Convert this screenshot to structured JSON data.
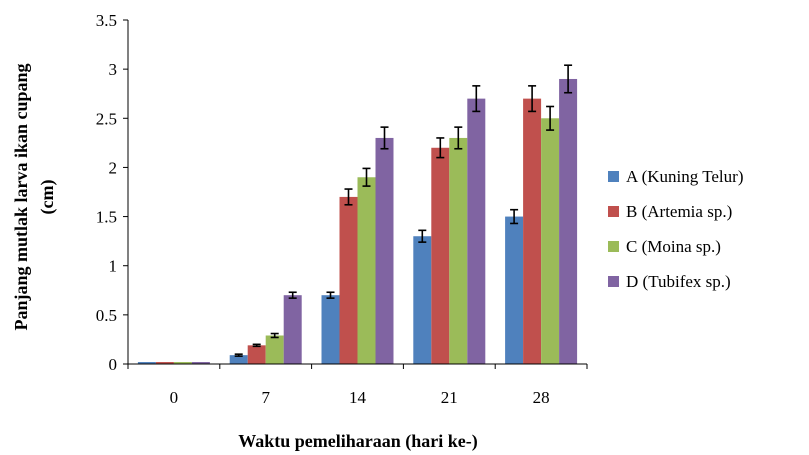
{
  "chart_data": {
    "type": "bar",
    "title": "",
    "xlabel": "Waktu pemeliharaan (hari ke-)",
    "ylabel_lines": [
      "Panjang mutlak larva ikan cupang",
      "(cm)"
    ],
    "categories": [
      "0",
      "7",
      "14",
      "21",
      "28"
    ],
    "ylim": [
      0,
      3.5
    ],
    "yticks": [
      "0",
      "0.5",
      "1",
      "1.5",
      "2",
      "2.5",
      "3",
      "3.5"
    ],
    "grid": false,
    "legend_position": "right",
    "series": [
      {
        "name": "A (Kuning Telur)",
        "color": "#4F81BD",
        "values": [
          0.02,
          0.09,
          0.7,
          1.3,
          1.5
        ],
        "errors": [
          0,
          0.01,
          0.03,
          0.06,
          0.07
        ]
      },
      {
        "name": "B (Artemia sp.)",
        "color": "#C0504D",
        "values": [
          0.02,
          0.19,
          1.7,
          2.2,
          2.7
        ],
        "errors": [
          0,
          0.01,
          0.08,
          0.1,
          0.13
        ]
      },
      {
        "name": "C (Moina sp.)",
        "color": "#9BBB59",
        "values": [
          0.02,
          0.29,
          1.9,
          2.3,
          2.5
        ],
        "errors": [
          0,
          0.02,
          0.09,
          0.11,
          0.12
        ]
      },
      {
        "name": "D (Tubifex sp.)",
        "color": "#8064A2",
        "values": [
          0.02,
          0.7,
          2.3,
          2.7,
          2.9
        ],
        "errors": [
          0,
          0.03,
          0.11,
          0.13,
          0.14
        ]
      }
    ]
  }
}
